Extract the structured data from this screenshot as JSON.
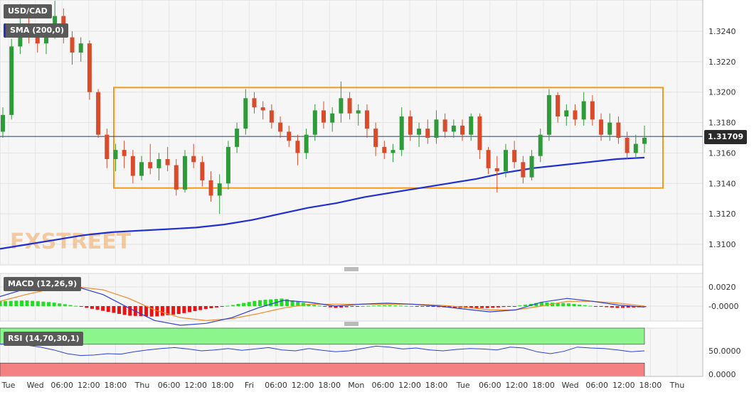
{
  "symbol": "USD/CAD",
  "current_price": "1.31709",
  "watermark": "FXSTREET",
  "indicators": {
    "sma": "SMA (200,0)",
    "macd": "MACD (12,26,9)",
    "rsi": "RSI (14,70,30,1)"
  },
  "colors": {
    "candle_up": "#2e9a3a",
    "candle_down": "#d94b2b",
    "sma_line": "#1f2fd0",
    "consolidation_box": "#f39a1c",
    "macd_line": "#2b3fd6",
    "signal_line": "#f08a24",
    "hist_pos": "#22dd22",
    "hist_neg": "#ee1111",
    "rsi_overbought_zone": "#8cf58c",
    "rsi_oversold_zone": "#f58282",
    "rsi_line": "#2b3fd6",
    "watermark": "#f2a55a"
  },
  "chart_data": [
    {
      "type": "candlestick",
      "title": "USD/CAD",
      "series_name": "SMA (200,0)",
      "y_ticks": [
        "1.3100",
        "1.3120",
        "1.3140",
        "1.3160",
        "1.3180",
        "1.3200",
        "1.3220",
        "1.3240"
      ],
      "ylim": [
        1.3086,
        1.3262
      ],
      "last_price": 1.31709,
      "x_ticks": [
        "Tue",
        "Wed",
        "06:00",
        "12:00",
        "18:00",
        "Thu",
        "06:00",
        "12:00",
        "18:00",
        "Fri",
        "06:00",
        "12:00",
        "18:00",
        "Mon",
        "06:00",
        "12:00",
        "18:00",
        "Tue",
        "06:00",
        "12:00",
        "18:00",
        "Wed",
        "06:00",
        "12:00",
        "18:00",
        "Thu"
      ],
      "grid": true,
      "consolidation_range": [
        1.3137,
        1.3203
      ],
      "sma_200": [
        1.3097,
        1.31,
        1.3103,
        1.3106,
        1.3108,
        1.3109,
        1.311,
        1.3111,
        1.3113,
        1.3116,
        1.312,
        1.3124,
        1.3127,
        1.3131,
        1.3134,
        1.3137,
        1.314,
        1.3143,
        1.3147,
        1.315,
        1.3152,
        1.3154,
        1.3156,
        1.3157
      ],
      "ohlc": [
        [
          1.3174,
          1.319,
          1.317,
          1.3185
        ],
        [
          1.3185,
          1.3235,
          1.3182,
          1.323
        ],
        [
          1.323,
          1.3258,
          1.3225,
          1.3245
        ],
        [
          1.3245,
          1.325,
          1.3232,
          1.3238
        ],
        [
          1.3238,
          1.3245,
          1.3226,
          1.3232
        ],
        [
          1.3232,
          1.3244,
          1.3225,
          1.324
        ],
        [
          1.324,
          1.326,
          1.3235,
          1.325
        ],
        [
          1.325,
          1.3255,
          1.3232,
          1.3236
        ],
        [
          1.3236,
          1.324,
          1.3218,
          1.3226
        ],
        [
          1.3226,
          1.3236,
          1.322,
          1.3232
        ],
        [
          1.3232,
          1.3234,
          1.3195,
          1.32
        ],
        [
          1.32,
          1.3202,
          1.317,
          1.3172
        ],
        [
          1.3172,
          1.3176,
          1.315,
          1.3156
        ],
        [
          1.3156,
          1.3166,
          1.3148,
          1.3162
        ],
        [
          1.3162,
          1.3168,
          1.315,
          1.3158
        ],
        [
          1.3158,
          1.3162,
          1.314,
          1.3145
        ],
        [
          1.3145,
          1.3158,
          1.3142,
          1.3154
        ],
        [
          1.3154,
          1.3166,
          1.3146,
          1.315
        ],
        [
          1.315,
          1.316,
          1.3142,
          1.3156
        ],
        [
          1.3156,
          1.3164,
          1.3148,
          1.3152
        ],
        [
          1.3152,
          1.3156,
          1.3132,
          1.3136
        ],
        [
          1.3136,
          1.3162,
          1.3134,
          1.3158
        ],
        [
          1.3158,
          1.3166,
          1.315,
          1.3154
        ],
        [
          1.3154,
          1.3158,
          1.3138,
          1.3142
        ],
        [
          1.3142,
          1.3148,
          1.3128,
          1.3132
        ],
        [
          1.3132,
          1.3146,
          1.312,
          1.314
        ],
        [
          1.314,
          1.3168,
          1.3136,
          1.3164
        ],
        [
          1.3164,
          1.318,
          1.316,
          1.3176
        ],
        [
          1.3176,
          1.3202,
          1.3172,
          1.3196
        ],
        [
          1.3196,
          1.32,
          1.3186,
          1.319
        ],
        [
          1.319,
          1.3194,
          1.3182,
          1.3188
        ],
        [
          1.3188,
          1.3192,
          1.3176,
          1.318
        ],
        [
          1.318,
          1.3184,
          1.317,
          1.3174
        ],
        [
          1.3174,
          1.3178,
          1.3164,
          1.3168
        ],
        [
          1.3168,
          1.3172,
          1.3152,
          1.316
        ],
        [
          1.316,
          1.3176,
          1.3156,
          1.3172
        ],
        [
          1.3172,
          1.3192,
          1.3168,
          1.3188
        ],
        [
          1.3188,
          1.3194,
          1.3176,
          1.318
        ],
        [
          1.318,
          1.319,
          1.3174,
          1.3186
        ],
        [
          1.3186,
          1.3207,
          1.318,
          1.3196
        ],
        [
          1.3196,
          1.32,
          1.3182,
          1.3186
        ],
        [
          1.3186,
          1.3192,
          1.3178,
          1.3188
        ],
        [
          1.3188,
          1.3192,
          1.317,
          1.3176
        ],
        [
          1.3176,
          1.318,
          1.3158,
          1.3164
        ],
        [
          1.3164,
          1.3168,
          1.3156,
          1.316
        ],
        [
          1.316,
          1.3166,
          1.3154,
          1.3162
        ],
        [
          1.3162,
          1.319,
          1.3158,
          1.3184
        ],
        [
          1.3184,
          1.3188,
          1.3168,
          1.3172
        ],
        [
          1.3172,
          1.318,
          1.3164,
          1.3176
        ],
        [
          1.3176,
          1.3182,
          1.3166,
          1.317
        ],
        [
          1.317,
          1.3188,
          1.3166,
          1.3182
        ],
        [
          1.3182,
          1.3186,
          1.317,
          1.3174
        ],
        [
          1.3174,
          1.3182,
          1.317,
          1.3178
        ],
        [
          1.3178,
          1.3182,
          1.3168,
          1.3172
        ],
        [
          1.3172,
          1.3186,
          1.3168,
          1.3184
        ],
        [
          1.3184,
          1.3186,
          1.3156,
          1.3162
        ],
        [
          1.3162,
          1.3164,
          1.3146,
          1.315
        ],
        [
          1.315,
          1.3158,
          1.3134,
          1.3148
        ],
        [
          1.3148,
          1.3166,
          1.3144,
          1.3162
        ],
        [
          1.3162,
          1.3168,
          1.315,
          1.3154
        ],
        [
          1.3154,
          1.3158,
          1.314,
          1.3144
        ],
        [
          1.3144,
          1.3162,
          1.3142,
          1.3158
        ],
        [
          1.3158,
          1.3176,
          1.3154,
          1.3172
        ],
        [
          1.3172,
          1.3202,
          1.3168,
          1.3198
        ],
        [
          1.3198,
          1.32,
          1.318,
          1.3184
        ],
        [
          1.3184,
          1.3192,
          1.3178,
          1.3188
        ],
        [
          1.3188,
          1.3192,
          1.3178,
          1.3182
        ],
        [
          1.3182,
          1.32,
          1.3178,
          1.3194
        ],
        [
          1.3194,
          1.3198,
          1.3178,
          1.3182
        ],
        [
          1.3182,
          1.3186,
          1.3168,
          1.3172
        ],
        [
          1.3172,
          1.3186,
          1.3168,
          1.318
        ],
        [
          1.318,
          1.3184,
          1.3166,
          1.317
        ],
        [
          1.317,
          1.3174,
          1.3156,
          1.316
        ],
        [
          1.316,
          1.3172,
          1.3156,
          1.3166
        ],
        [
          1.3166,
          1.3178,
          1.316,
          1.317
        ]
      ]
    },
    {
      "type": "line",
      "title": "MACD (12,26,9)",
      "y_ticks": [
        "0.0020",
        "-0.0000"
      ],
      "macd": [
        0.001,
        0.0018,
        0.0022,
        0.002,
        0.0012,
        -0.0002,
        -0.0015,
        -0.002,
        -0.0018,
        -0.0012,
        -0.0002,
        0.0006,
        0.0004,
        0.0,
        0.0002,
        0.0003,
        0.0002,
        0.0,
        -0.0003,
        -0.0006,
        -0.0004,
        0.0004,
        0.0008,
        0.0005,
        0.0001,
        -0.0001
      ],
      "signal": [
        0.0005,
        0.0012,
        0.0018,
        0.002,
        0.0017,
        0.0008,
        -0.0004,
        -0.0012,
        -0.0015,
        -0.0013,
        -0.0008,
        -0.0002,
        0.0002,
        0.0002,
        0.0002,
        0.0002,
        0.0002,
        0.0001,
        -0.0001,
        -0.0004,
        -0.0004,
        0.0,
        0.0005,
        0.0005,
        0.0003,
        0.0
      ],
      "histogram": [
        0.0005,
        0.0006,
        0.0004,
        0.0,
        -0.0005,
        -0.001,
        -0.0011,
        -0.0008,
        -0.0003,
        0.0001,
        0.0006,
        0.0008,
        0.0002,
        -0.0002,
        0.0,
        0.0001,
        0.0,
        -0.0001,
        -0.0002,
        -0.0002,
        0.0,
        0.0004,
        0.0003,
        0.0,
        -0.0002,
        -0.0001
      ]
    },
    {
      "type": "line",
      "title": "RSI (14,70,30,1)",
      "y_ticks": [
        "50.0000",
        "0.0000"
      ],
      "overbought": 70,
      "oversold": 30,
      "rsi": [
        64,
        66,
        62,
        58,
        52,
        44,
        40,
        41,
        44,
        43,
        48,
        52,
        55,
        57,
        54,
        50,
        52,
        55,
        51,
        54,
        57,
        52,
        50,
        55,
        51,
        48,
        50,
        55,
        60,
        58,
        54,
        56,
        52,
        50,
        53,
        55,
        54,
        52,
        58,
        56,
        48,
        44,
        49,
        58,
        56,
        55,
        52,
        48,
        50
      ]
    }
  ]
}
